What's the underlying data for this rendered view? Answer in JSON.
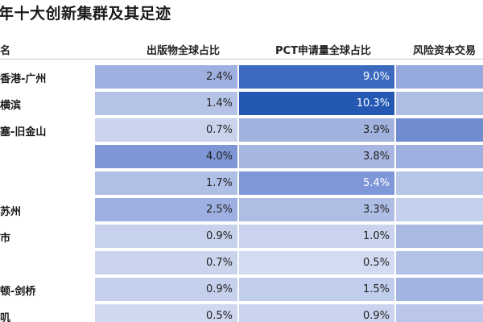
{
  "title": "年十大创新集群及其足迹",
  "headers": {
    "name": "名",
    "pub": "出版物全球占比",
    "pct": "PCT申请量全球占比",
    "vc": "风险资本交易"
  },
  "rows": [
    {
      "name": "香港-广州",
      "pub": "2.4%",
      "pct": "9.0%",
      "pub_color": "#9fb0e0",
      "pct_color": "#3d6ac0",
      "vc_color": "#95a9dc",
      "pct_light": true
    },
    {
      "name": "横滨",
      "pub": "1.4%",
      "pct": "10.3%",
      "pub_color": "#b5c3e6",
      "pct_color": "#2458b3",
      "vc_color": "#aebde3",
      "pct_light": true
    },
    {
      "name": "塞-旧金山",
      "pub": "0.7%",
      "pct": "3.9%",
      "pub_color": "#c9d3ec",
      "pct_color": "#a2b2df",
      "vc_color": "#6f8ccf",
      "pct_light": false
    },
    {
      "name": "",
      "pub": "4.0%",
      "pct": "3.8%",
      "pub_color": "#7f96d6",
      "pct_color": "#a6b6e1",
      "vc_color": "#9db0df",
      "pct_light": false
    },
    {
      "name": "",
      "pub": "1.7%",
      "pct": "5.4%",
      "pub_color": "#b0bfe6",
      "pct_color": "#7f97d8",
      "vc_color": "#b7c5e9",
      "pct_light": true
    },
    {
      "name": "苏州",
      "pub": "2.5%",
      "pct": "3.3%",
      "pub_color": "#9eb0e1",
      "pct_color": "#aebde4",
      "vc_color": "#c5d0ed",
      "pct_light": false
    },
    {
      "name": "市",
      "pub": "0.9%",
      "pct": "1.0%",
      "pub_color": "#c6d1ec",
      "pct_color": "#c9d3ee",
      "vc_color": "#a9b9e4",
      "pct_light": false
    },
    {
      "name": "",
      "pub": "0.7%",
      "pct": "0.5%",
      "pub_color": "#cad4ed",
      "pct_color": "#d2dbf1",
      "vc_color": "#b2c1e7",
      "pct_light": false
    },
    {
      "name": "顿-剑桥",
      "pub": "0.9%",
      "pct": "1.5%",
      "pub_color": "#c5d0ec",
      "pct_color": "#c1cdec",
      "vc_color": "#a3b4e2",
      "pct_light": false
    },
    {
      "name": "叽",
      "pub": "0.5%",
      "pct": "0.9%",
      "pub_color": "#cfd8ef",
      "pct_color": "#cad4ee",
      "vc_color": "#bac7ea",
      "pct_light": false
    }
  ]
}
